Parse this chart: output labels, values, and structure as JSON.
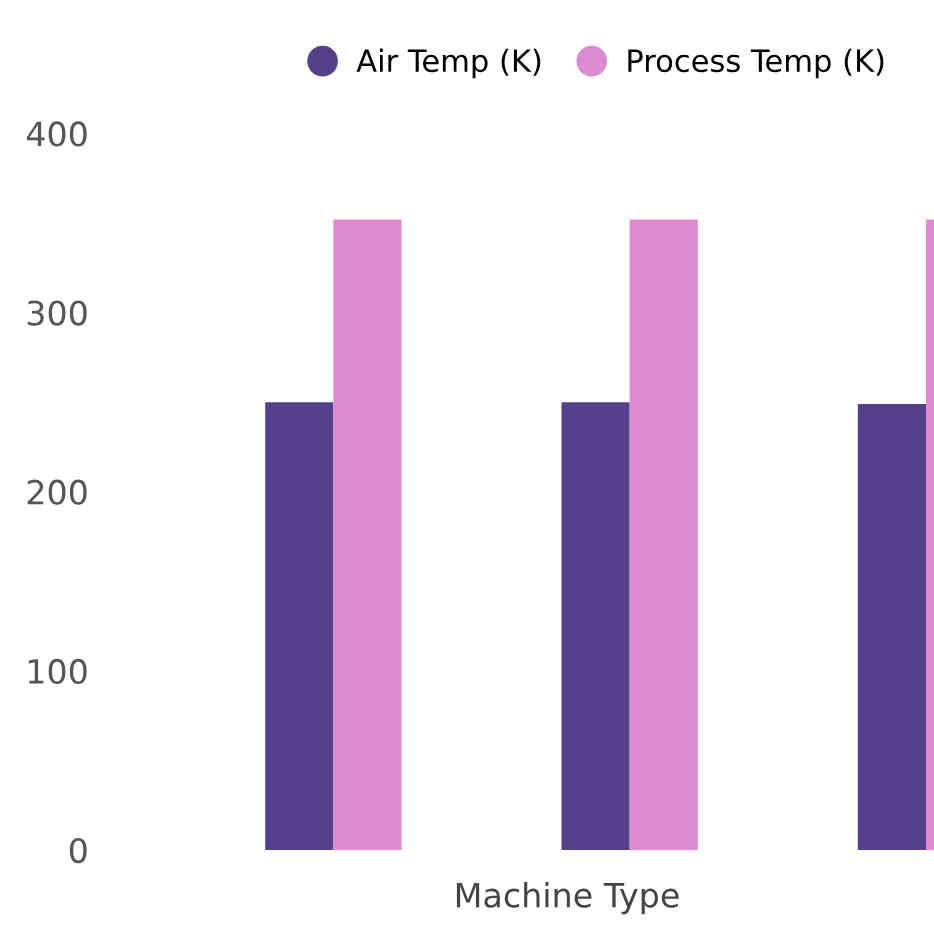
{
  "chart_data": {
    "type": "bar",
    "xlabel": "Machine Type",
    "categories": [
      null,
      null,
      null
    ],
    "series": [
      {
        "name": "Air Temp (K)",
        "color": "#56408a",
        "values": [
          250,
          250,
          249
        ]
      },
      {
        "name": "Process Temp (K)",
        "color": "#dc8ad2",
        "values": [
          352,
          352,
          352
        ]
      }
    ],
    "ylim": [
      0,
      400
    ],
    "yticks": [
      0,
      100,
      200,
      300,
      400
    ],
    "grid": false,
    "legend": "top"
  }
}
